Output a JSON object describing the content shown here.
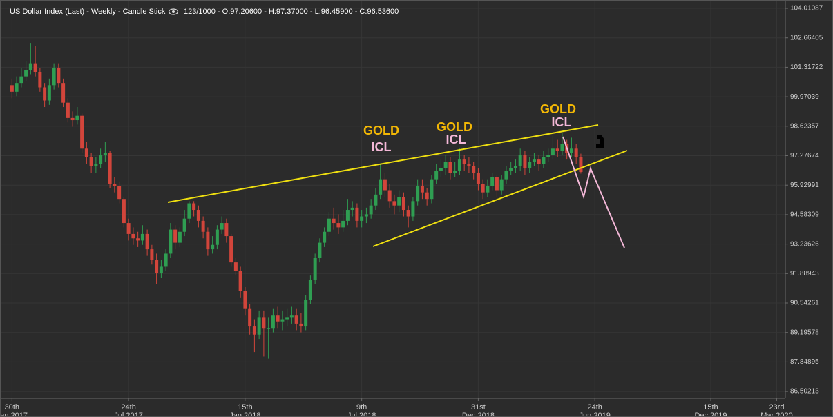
{
  "chart_data": {
    "type": "candlestick",
    "title": "US Dollar Index (Last) - Weekly - Candle Stick",
    "info": "123/1000 - O:97.20600 - H:97.37000 - L:96.45900 - C:96.53600",
    "x": [
      "2017-01-30",
      "2017-02-06",
      "2017-02-13",
      "2017-02-20",
      "2017-02-27",
      "2017-03-06",
      "2017-03-13",
      "2017-03-20",
      "2017-03-27",
      "2017-04-03",
      "2017-04-10",
      "2017-04-17",
      "2017-04-24",
      "2017-05-01",
      "2017-05-08",
      "2017-05-15",
      "2017-05-22",
      "2017-05-29",
      "2017-06-05",
      "2017-06-12",
      "2017-06-19",
      "2017-06-26",
      "2017-07-03",
      "2017-07-10",
      "2017-07-17",
      "2017-07-24",
      "2017-07-31",
      "2017-08-07",
      "2017-08-14",
      "2017-08-21",
      "2017-08-28",
      "2017-09-04",
      "2017-09-11",
      "2017-09-18",
      "2017-09-25",
      "2017-10-02",
      "2017-10-09",
      "2017-10-16",
      "2017-10-23",
      "2017-10-30",
      "2017-11-06",
      "2017-11-13",
      "2017-11-20",
      "2017-11-27",
      "2017-12-04",
      "2017-12-11",
      "2017-12-18",
      "2017-12-25",
      "2018-01-01",
      "2018-01-08",
      "2018-01-15",
      "2018-01-22",
      "2018-01-29",
      "2018-02-05",
      "2018-02-12",
      "2018-02-19",
      "2018-02-26",
      "2018-03-05",
      "2018-03-12",
      "2018-03-19",
      "2018-03-26",
      "2018-04-02",
      "2018-04-09",
      "2018-04-16",
      "2018-04-23",
      "2018-04-30",
      "2018-05-07",
      "2018-05-14",
      "2018-05-21",
      "2018-05-28",
      "2018-06-04",
      "2018-06-11",
      "2018-06-18",
      "2018-06-25",
      "2018-07-02",
      "2018-07-09",
      "2018-07-16",
      "2018-07-23",
      "2018-07-30",
      "2018-08-06",
      "2018-08-13",
      "2018-08-20",
      "2018-08-27",
      "2018-09-03",
      "2018-09-10",
      "2018-09-17",
      "2018-09-24",
      "2018-10-01",
      "2018-10-08",
      "2018-10-15",
      "2018-10-22",
      "2018-10-29",
      "2018-11-05",
      "2018-11-12",
      "2018-11-19",
      "2018-11-26",
      "2018-12-03",
      "2018-12-10",
      "2018-12-17",
      "2018-12-24",
      "2018-12-31",
      "2019-01-07",
      "2019-01-14",
      "2019-01-21",
      "2019-01-28",
      "2019-02-04",
      "2019-02-11",
      "2019-02-18",
      "2019-02-25",
      "2019-03-04",
      "2019-03-11",
      "2019-03-18",
      "2019-03-25",
      "2019-04-01",
      "2019-04-08",
      "2019-04-15",
      "2019-04-22",
      "2019-04-29",
      "2019-05-06",
      "2019-05-13",
      "2019-05-20",
      "2019-05-27",
      "2019-06-03"
    ],
    "open": [
      100.5,
      100.2,
      100.6,
      100.9,
      101.2,
      101.5,
      101.1,
      100.4,
      99.8,
      100.5,
      101.3,
      100.6,
      99.7,
      99.0,
      98.9,
      99.1,
      97.6,
      97.2,
      96.8,
      96.9,
      97.3,
      97.4,
      96.0,
      95.9,
      95.3,
      94.2,
      93.7,
      93.5,
      93.4,
      93.7,
      93.0,
      92.5,
      91.9,
      92.2,
      92.8,
      93.9,
      93.3,
      93.8,
      94.4,
      95.1,
      94.8,
      94.3,
      93.8,
      93.0,
      93.2,
      93.9,
      94.2,
      93.6,
      92.4,
      92.0,
      91.1,
      90.3,
      89.5,
      89.1,
      89.9,
      89.4,
      89.4,
      90.0,
      89.7,
      89.8,
      89.9,
      90.0,
      89.6,
      89.5,
      90.7,
      91.6,
      92.6,
      93.3,
      93.8,
      94.4,
      94.2,
      94.0,
      94.3,
      94.8,
      94.9,
      94.3,
      94.5,
      94.6,
      95.0,
      95.5,
      96.2,
      95.7,
      95.2,
      95.0,
      95.4,
      94.8,
      94.5,
      95.2,
      95.9,
      95.6,
      95.3,
      96.2,
      96.6,
      96.7,
      97.0,
      96.5,
      96.6,
      97.1,
      96.9,
      96.8,
      96.5,
      96.0,
      95.6,
      95.9,
      96.3,
      95.7,
      96.2,
      96.6,
      96.7,
      96.8,
      97.3,
      96.7,
      97.0,
      97.1,
      96.9,
      97.2,
      97.3,
      97.6,
      97.5,
      97.8,
      97.4,
      97.6,
      97.206
    ],
    "high": [
      100.8,
      100.9,
      101.3,
      101.6,
      102.4,
      102.3,
      101.3,
      100.6,
      100.8,
      101.5,
      101.5,
      100.8,
      99.9,
      99.3,
      99.5,
      99.2,
      97.9,
      97.4,
      97.2,
      97.6,
      97.9,
      97.5,
      96.3,
      96.1,
      95.4,
      94.4,
      94.0,
      93.8,
      94.1,
      93.9,
      93.2,
      92.8,
      92.5,
      93.0,
      94.2,
      94.1,
      94.0,
      94.8,
      95.2,
      95.2,
      95.0,
      94.5,
      94.0,
      93.6,
      94.1,
      94.5,
      94.4,
      93.7,
      92.6,
      92.2,
      91.3,
      90.5,
      89.8,
      90.2,
      90.2,
      89.9,
      90.3,
      90.4,
      90.2,
      90.3,
      90.4,
      90.3,
      90.1,
      90.9,
      91.8,
      92.8,
      93.5,
      94.0,
      94.7,
      94.9,
      94.6,
      94.8,
      95.3,
      95.2,
      95.1,
      94.8,
      94.9,
      95.3,
      95.8,
      96.9,
      96.5,
      96.0,
      95.5,
      95.7,
      95.6,
      95.0,
      95.4,
      96.2,
      96.2,
      95.8,
      96.4,
      96.9,
      97.1,
      97.3,
      97.2,
      97.0,
      97.6,
      97.3,
      97.2,
      97.0,
      96.7,
      96.2,
      96.2,
      96.5,
      96.4,
      96.4,
      96.8,
      97.0,
      97.1,
      97.6,
      97.5,
      97.2,
      97.4,
      97.3,
      97.5,
      97.6,
      98.2,
      98.0,
      98.3,
      98.0,
      98.1,
      97.8,
      97.37
    ],
    "low": [
      99.9,
      100.0,
      100.4,
      100.7,
      101.0,
      100.9,
      100.2,
      99.5,
      99.6,
      100.3,
      100.4,
      99.5,
      98.8,
      98.6,
      98.7,
      97.4,
      96.9,
      96.5,
      96.5,
      96.7,
      97.0,
      95.8,
      95.6,
      95.1,
      94.0,
      93.4,
      93.2,
      93.1,
      93.2,
      92.7,
      92.3,
      91.4,
      91.7,
      92.0,
      92.6,
      93.0,
      93.1,
      93.6,
      94.2,
      94.5,
      94.0,
      93.5,
      92.7,
      92.8,
      93.0,
      93.7,
      93.3,
      92.2,
      91.8,
      90.8,
      90.0,
      89.1,
      88.3,
      88.9,
      88.1,
      88.0,
      89.2,
      89.4,
      89.3,
      89.5,
      89.6,
      89.3,
      89.2,
      89.3,
      90.5,
      91.4,
      92.4,
      93.1,
      93.6,
      93.9,
      93.7,
      93.8,
      94.1,
      94.5,
      94.0,
      94.0,
      94.2,
      94.4,
      94.8,
      95.3,
      95.4,
      94.9,
      94.6,
      94.7,
      94.5,
      94.0,
      94.3,
      95.0,
      95.3,
      95.0,
      95.1,
      96.0,
      96.3,
      96.4,
      96.2,
      96.3,
      96.4,
      96.6,
      96.5,
      96.2,
      95.7,
      95.3,
      95.4,
      95.7,
      95.4,
      95.5,
      96.0,
      96.4,
      96.5,
      96.6,
      96.4,
      96.5,
      96.8,
      96.6,
      96.7,
      97.0,
      97.1,
      97.2,
      97.3,
      97.1,
      97.2,
      96.9,
      96.459
    ],
    "close": [
      100.2,
      100.6,
      100.9,
      101.2,
      101.5,
      101.1,
      100.4,
      99.8,
      100.5,
      101.3,
      100.6,
      99.7,
      99.0,
      98.9,
      99.1,
      97.6,
      97.2,
      96.8,
      96.9,
      97.3,
      97.4,
      96.0,
      95.9,
      95.3,
      94.2,
      93.7,
      93.5,
      93.4,
      93.7,
      93.0,
      92.5,
      91.9,
      92.2,
      92.8,
      93.9,
      93.3,
      93.8,
      94.4,
      95.1,
      94.8,
      94.3,
      93.8,
      93.0,
      93.2,
      93.9,
      94.2,
      93.6,
      92.4,
      92.0,
      91.1,
      90.3,
      89.5,
      89.1,
      89.9,
      89.4,
      89.4,
      90.0,
      89.7,
      89.8,
      89.9,
      90.0,
      89.6,
      89.5,
      90.7,
      91.6,
      92.6,
      93.3,
      93.8,
      94.4,
      94.2,
      94.0,
      94.3,
      94.8,
      94.9,
      94.3,
      94.5,
      94.6,
      95.0,
      95.5,
      96.2,
      95.7,
      95.2,
      95.0,
      95.4,
      94.8,
      94.5,
      95.2,
      95.9,
      95.6,
      95.3,
      96.2,
      96.6,
      96.7,
      97.0,
      96.5,
      96.6,
      97.1,
      96.9,
      96.8,
      96.5,
      96.0,
      95.6,
      95.9,
      96.3,
      95.7,
      96.2,
      96.6,
      96.7,
      96.8,
      97.3,
      96.7,
      97.0,
      97.1,
      96.9,
      97.2,
      97.3,
      97.6,
      97.5,
      97.8,
      97.4,
      97.6,
      97.206,
      96.536
    ],
    "up_color": "#2f9e52",
    "down_color": "#d2453b",
    "xlim": [
      "2017-01-12",
      "2020-04-05"
    ],
    "xticks": [
      {
        "value": "2017-01-30",
        "label": "30th Jan 2017"
      },
      {
        "value": "2017-07-24",
        "label": "24th Jul 2017"
      },
      {
        "value": "2018-01-15",
        "label": "15th Jan 2018"
      },
      {
        "value": "2018-07-09",
        "label": "9th Jul 2018"
      },
      {
        "value": "2018-12-31",
        "label": "31st Dec 2018"
      },
      {
        "value": "2019-06-24",
        "label": "24th Jun 2019"
      },
      {
        "value": "2019-12-15",
        "label": "15th Dec 2019"
      },
      {
        "value": "2020-03-23",
        "label": "23rd Mar 2020"
      }
    ],
    "ylim": [
      86.19,
      104.39
    ],
    "yticks": [
      104.01087,
      102.66405,
      101.31722,
      99.97039,
      98.62357,
      97.27674,
      95.92991,
      94.58309,
      93.23626,
      91.88943,
      90.54261,
      89.19578,
      87.84895,
      86.50213
    ],
    "grid": true,
    "annotations": [
      {
        "top": "GOLD",
        "bottom": "ICL"
      },
      {
        "top": "GOLD",
        "bottom": "ICL"
      },
      {
        "top": "GOLD",
        "bottom": "ICL"
      }
    ]
  }
}
